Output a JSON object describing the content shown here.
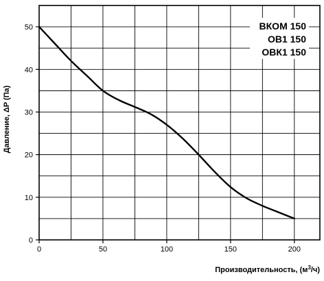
{
  "chart_data": {
    "type": "line",
    "title": "",
    "xlabel": "Производительность, (м³/ч)",
    "ylabel": "Давление, ΔP (Па)",
    "xlim": [
      0,
      220
    ],
    "ylim": [
      0,
      55
    ],
    "x_ticks": [
      0,
      50,
      100,
      150,
      200
    ],
    "y_ticks": [
      0,
      10,
      20,
      30,
      40,
      50
    ],
    "x_tick_labels": [
      "0",
      "50",
      "100",
      "150",
      "200"
    ],
    "y_tick_labels": [
      "0",
      "10",
      "20",
      "30",
      "40",
      "50"
    ],
    "grid": true,
    "legend_position": "top-right",
    "legend": [
      "ВКОМ 150",
      "ОВ1 150",
      "ОВК1 150"
    ],
    "series": [
      {
        "x": [
          0,
          12.5,
          25,
          37.5,
          50,
          62.5,
          75,
          87.5,
          100,
          112.5,
          125,
          137.5,
          150,
          162.5,
          175,
          187.5,
          200
        ],
        "y": [
          50,
          46,
          42,
          38.5,
          35,
          32.8,
          31.2,
          29.5,
          27,
          23.8,
          20,
          16,
          12.4,
          9.8,
          8,
          6.5,
          5
        ]
      }
    ]
  }
}
